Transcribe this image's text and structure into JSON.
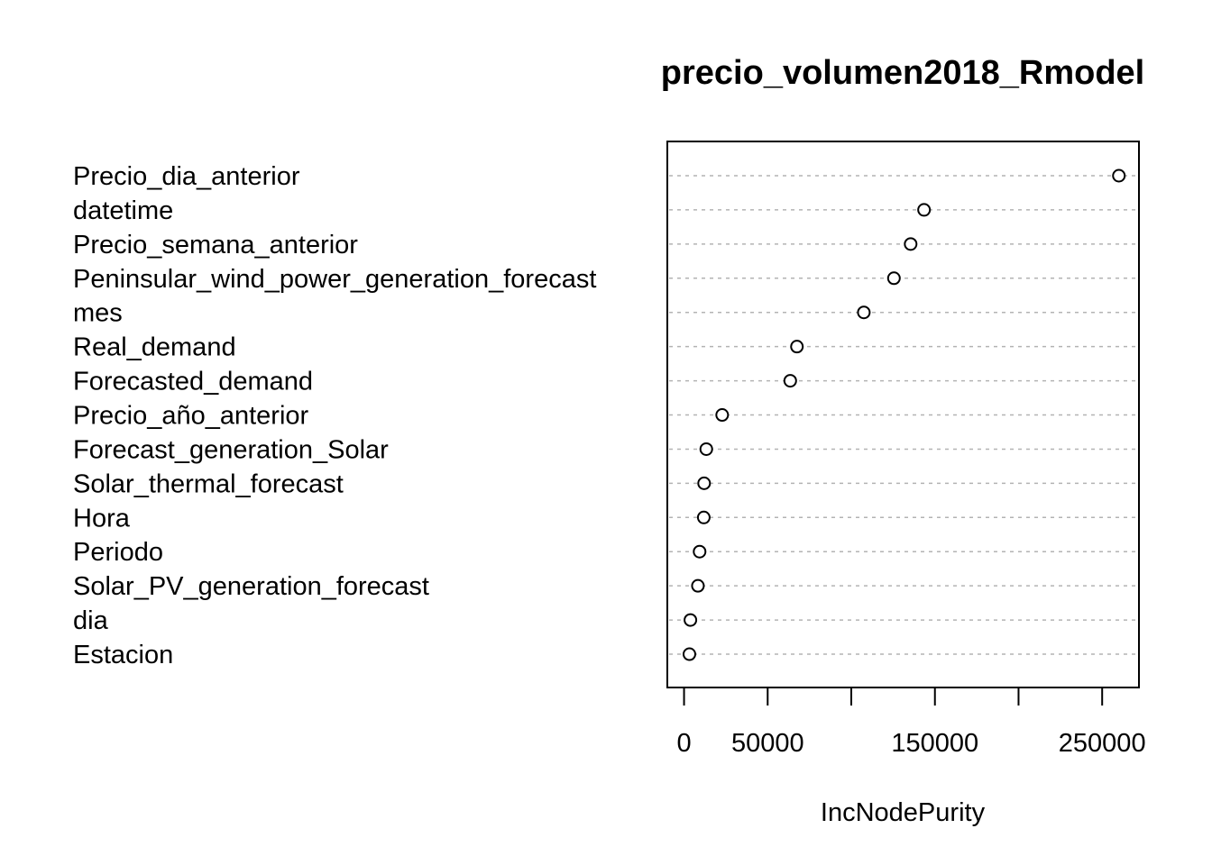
{
  "chart_data": {
    "type": "scatter",
    "title": "precio_volumen2018_Rmodel",
    "xlabel": "IncNodePurity",
    "ylabel": "",
    "xlim": [
      -10000,
      272000
    ],
    "xticks": [
      0,
      50000,
      100000,
      150000,
      200000,
      250000
    ],
    "xtick_labels": [
      "0",
      "50000",
      "",
      "150000",
      "",
      "250000"
    ],
    "grid": "dotted horizontal lines",
    "categories": [
      "Precio_dia_anterior",
      "datetime",
      "Precio_semana_anterior",
      "Peninsular_wind_power_generation_forecast",
      "mes",
      "Real_demand",
      "Forecasted_demand",
      "Precio_año_anterior",
      "Forecast_generation_Solar",
      "Solar_thermal_forecast",
      "Hora",
      "Periodo",
      "Solar_PV_generation_forecast",
      "dia",
      "Estacion"
    ],
    "values": [
      260000,
      143500,
      135500,
      125500,
      107500,
      67500,
      63500,
      22800,
      13300,
      12000,
      11800,
      9300,
      8300,
      3800,
      3200
    ]
  }
}
